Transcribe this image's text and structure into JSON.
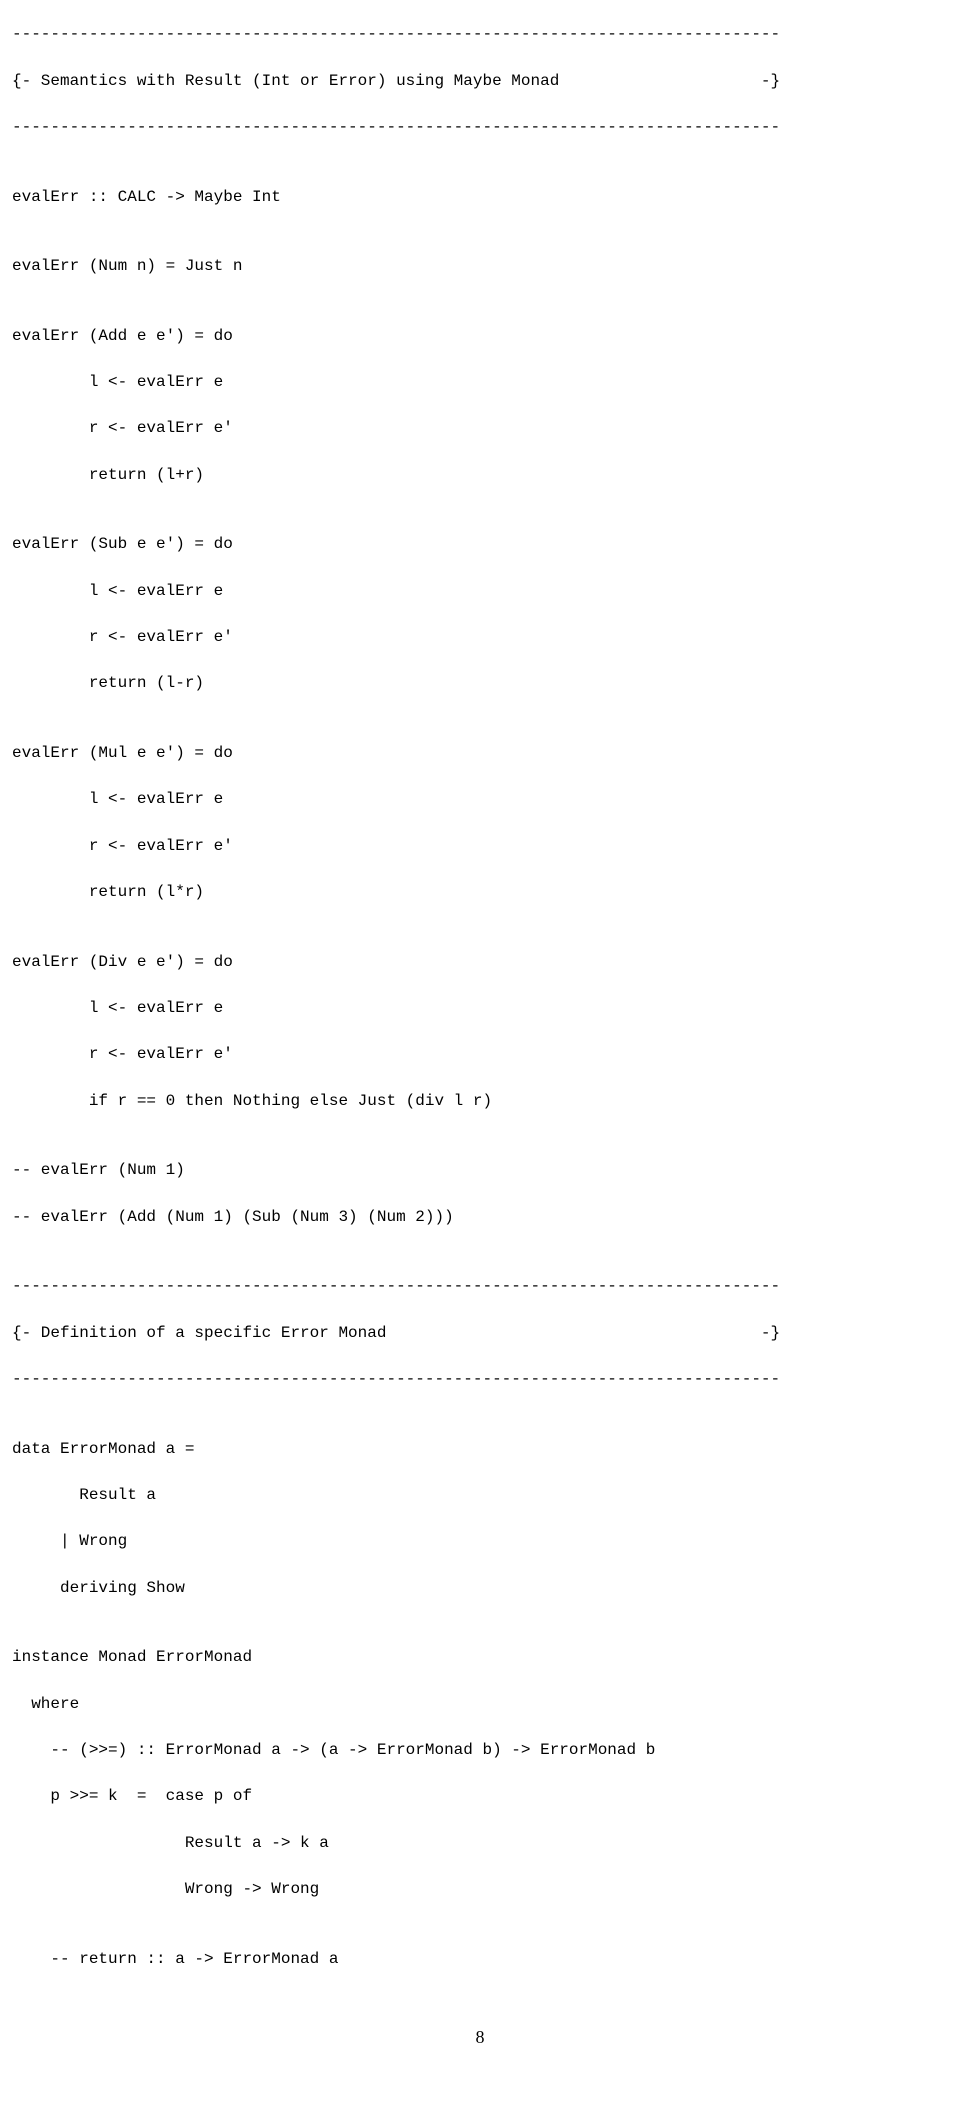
{
  "hr": "--------------------------------------------------------------------------------",
  "sec1_open": "{- Semantics with Result (Int or Error) using Maybe Monad                     -}",
  "sec2_open": "{- Definition of a specific Error Monad                                       -}",
  "blank": "",
  "l01": "evalErr :: CALC -> Maybe Int",
  "l02": "evalErr (Num n) = Just n",
  "l03": "evalErr (Add e e') = do",
  "l04": "        l <- evalErr e",
  "l05": "        r <- evalErr e'",
  "l06": "        return (l+r)",
  "l07": "evalErr (Sub e e') = do",
  "l08": "        l <- evalErr e",
  "l09": "        r <- evalErr e'",
  "l10": "        return (l-r)",
  "l11": "evalErr (Mul e e') = do",
  "l12": "        l <- evalErr e",
  "l13": "        r <- evalErr e'",
  "l14": "        return (l*r)",
  "l15": "evalErr (Div e e') = do",
  "l16": "        l <- evalErr e",
  "l17": "        r <- evalErr e'",
  "l18": "        if r == 0 then Nothing else Just (div l r)",
  "l19": "-- evalErr (Num 1)",
  "l20": "-- evalErr (Add (Num 1) (Sub (Num 3) (Num 2)))",
  "l21": "data ErrorMonad a =",
  "l22": "       Result a",
  "l23": "     | Wrong",
  "l24": "     deriving Show",
  "l25": "instance Monad ErrorMonad",
  "l26": "  where",
  "l27": "    -- (>>=) :: ErrorMonad a -> (a -> ErrorMonad b) -> ErrorMonad b",
  "l28": "    p >>= k  =  case p of",
  "l29": "                  Result a -> k a",
  "l30": "                  Wrong -> Wrong",
  "l31": "    -- return :: a -> ErrorMonad a",
  "page_number": "8"
}
